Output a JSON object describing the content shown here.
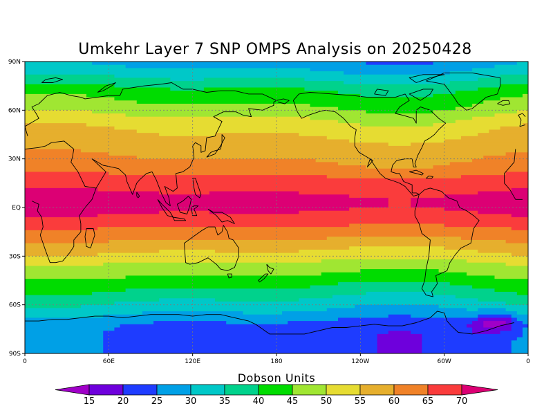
{
  "title": "Umkehr Layer 7 SNP OMPS Analysis on 20250428",
  "units_label": "Dobson Units",
  "map": {
    "projection": "cylindrical-equidistant",
    "central_longitude_deg": 180,
    "lat_range": [
      -90,
      90
    ],
    "lon_range": [
      0,
      360
    ],
    "y_ticks": [
      {
        "lat": 90,
        "label": "90N"
      },
      {
        "lat": 60,
        "label": "60N"
      },
      {
        "lat": 30,
        "label": "30N"
      },
      {
        "lat": 0,
        "label": "EQ"
      },
      {
        "lat": -30,
        "label": "30S"
      },
      {
        "lat": -60,
        "label": "60S"
      },
      {
        "lat": -90,
        "label": "90S"
      }
    ],
    "x_ticks": [
      {
        "lon": 0,
        "label": "0"
      },
      {
        "lon": 60,
        "label": "60E"
      },
      {
        "lon": 120,
        "label": "120E"
      },
      {
        "lon": 180,
        "label": "180"
      },
      {
        "lon": 240,
        "label": "120W"
      },
      {
        "lon": 300,
        "label": "60W"
      },
      {
        "lon": 360,
        "label": "0"
      }
    ],
    "grid": true,
    "coastlines": true
  },
  "colorbar": {
    "placement": "bottom",
    "levels": [
      15,
      20,
      25,
      30,
      35,
      40,
      45,
      50,
      55,
      60,
      65,
      70
    ],
    "colors": [
      "#a000c8",
      "#6e00dc",
      "#1e3cff",
      "#00a0e6",
      "#00c8c8",
      "#00d28c",
      "#00dc00",
      "#a0e632",
      "#e6dc32",
      "#e6af2d",
      "#f08228",
      "#fa3c3c",
      "#dc0074"
    ]
  },
  "chart_data": {
    "type": "heatmap",
    "variable": "Umkehr Layer 7 ozone",
    "units": "Dobson Units",
    "zonal_profile": {
      "lat": [
        90,
        84,
        78,
        72,
        66,
        60,
        54,
        48,
        42,
        36,
        30,
        24,
        18,
        12,
        6,
        0,
        -6,
        -12,
        -18,
        -24,
        -30,
        -36,
        -42,
        -48,
        -54,
        -60,
        -66,
        -72,
        -78,
        -84,
        -90
      ],
      "value": [
        27,
        31,
        36,
        41,
        44,
        47,
        51,
        54,
        56,
        58,
        60,
        62,
        66,
        69,
        71,
        71,
        69,
        65,
        61,
        57,
        53,
        48,
        45,
        41,
        37,
        33,
        29,
        24,
        23,
        23,
        23
      ]
    },
    "features": [
      {
        "lat": 2,
        "lon": 155,
        "value": 72
      },
      {
        "lat": -73,
        "lon": 330,
        "value": 18
      },
      {
        "lat": -70,
        "lon": 340,
        "value": 16
      }
    ]
  }
}
